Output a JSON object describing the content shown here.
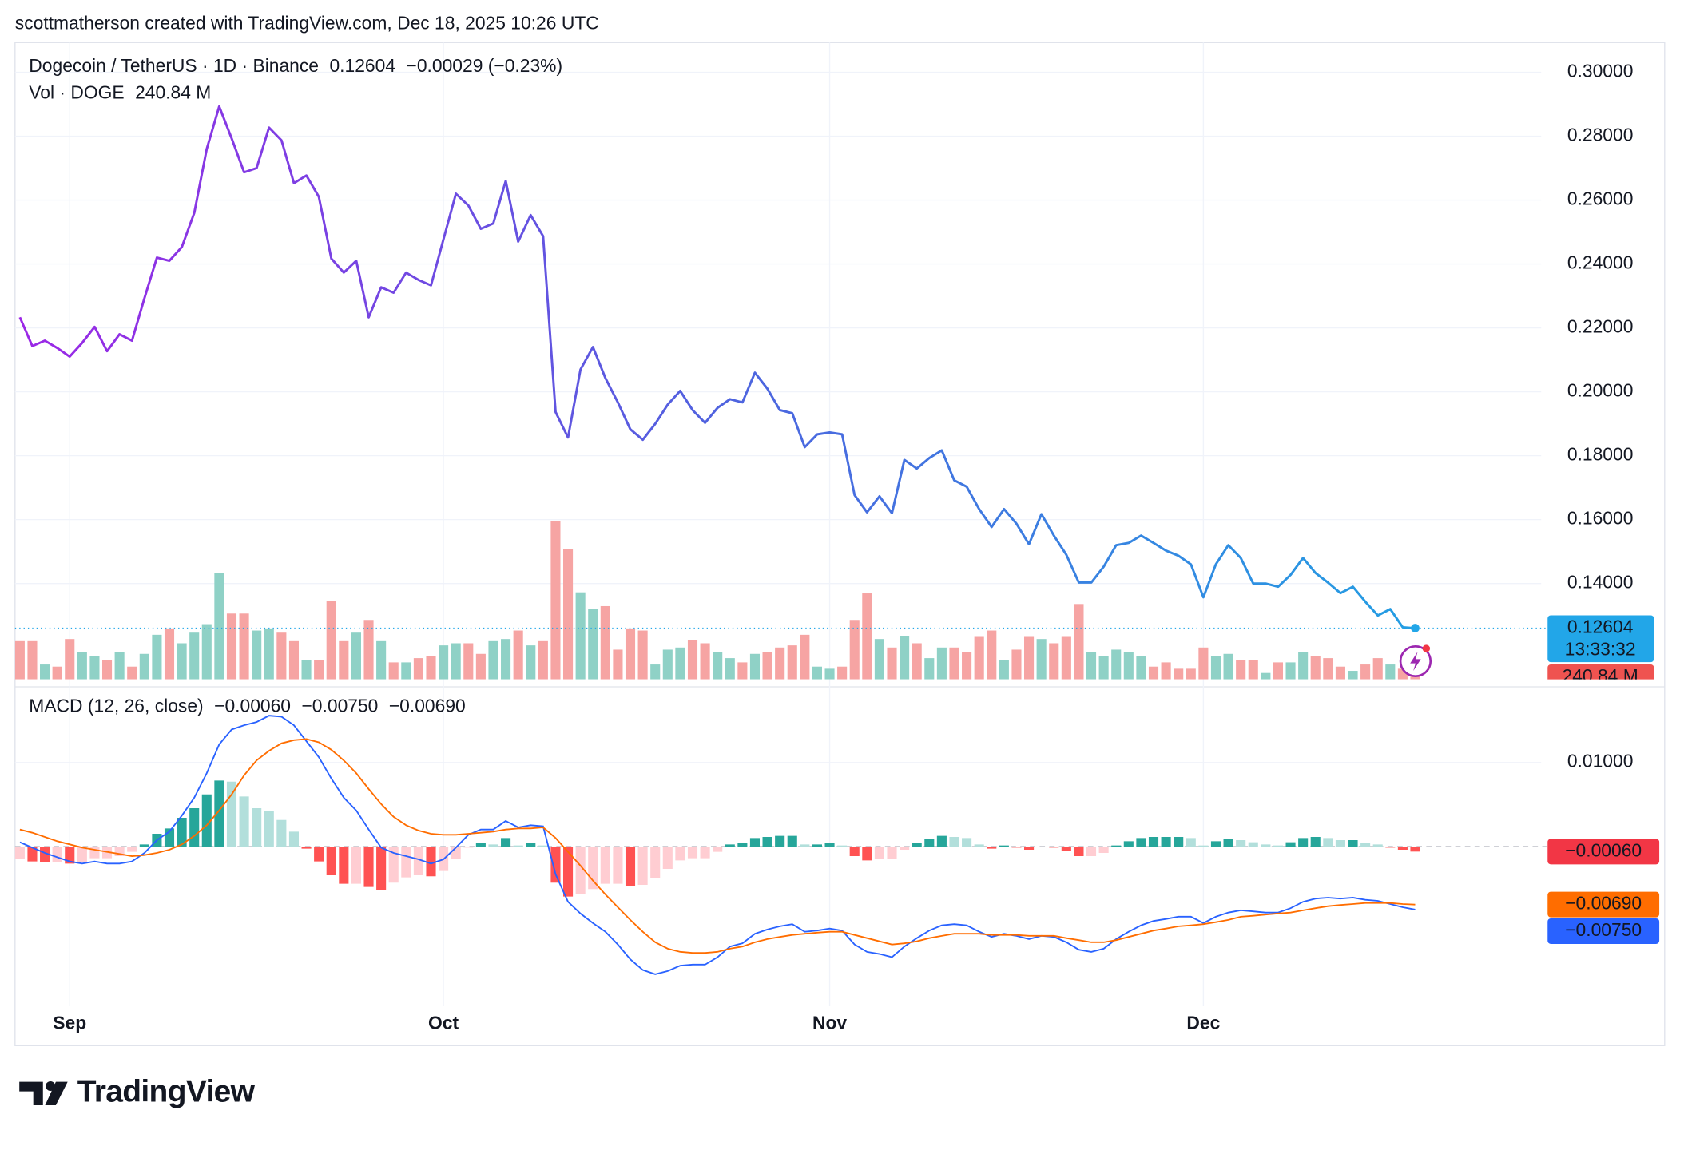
{
  "header": "scottmatherson created with TradingView.com, Dec 18, 2025 10:26 UTC",
  "brand": "TradingView",
  "chart_data": [
    {
      "type": "line",
      "title": "Dogecoin / TetherUS · 1D · Binance",
      "change": "−0.00029 (−0.23%)",
      "countdown": "13:33:32",
      "categories": [
        null,
        null,
        null,
        null,
        "Sep",
        null,
        null,
        null,
        null,
        null,
        null,
        null,
        null,
        null,
        null,
        null,
        null,
        null,
        null,
        null,
        null,
        null,
        null,
        null,
        null,
        null,
        null,
        null,
        null,
        null,
        null,
        null,
        null,
        null,
        "Oct",
        null,
        null,
        null,
        null,
        null,
        null,
        null,
        null,
        null,
        null,
        null,
        null,
        null,
        null,
        null,
        null,
        null,
        null,
        null,
        null,
        null,
        null,
        null,
        null,
        null,
        null,
        null,
        null,
        null,
        null,
        "Nov",
        null,
        null,
        null,
        null,
        null,
        null,
        null,
        null,
        null,
        null,
        null,
        null,
        null,
        null,
        null,
        null,
        null,
        null,
        null,
        null,
        null,
        null,
        null,
        null,
        null,
        null,
        null,
        null,
        null,
        "Dec",
        null,
        null,
        null,
        null,
        null,
        null,
        null,
        null,
        null,
        null,
        null,
        null,
        null,
        null,
        null,
        null,
        null
      ],
      "ylim": [
        0.11,
        0.3093
      ],
      "yticks": [
        {
          "value": 0.14,
          "label": "0.14000"
        },
        {
          "value": 0.16,
          "label": "0.16000"
        },
        {
          "value": 0.18,
          "label": "0.18000"
        },
        {
          "value": 0.2,
          "label": "0.20000"
        },
        {
          "value": 0.22,
          "label": "0.22000"
        },
        {
          "value": 0.24,
          "label": "0.24000"
        },
        {
          "value": 0.26,
          "label": "0.26000"
        },
        {
          "value": 0.28,
          "label": "0.28000"
        },
        {
          "value": 0.3,
          "label": "0.30000"
        }
      ],
      "grid": true,
      "series": [
        {
          "color": [
            "#9c27e6",
            "#4f63df",
            "#239fe3"
          ],
          "values": [
            0.2233,
            0.2143,
            0.216,
            0.2137,
            0.211,
            0.2153,
            0.2203,
            0.2127,
            0.218,
            0.216,
            0.2293,
            0.242,
            0.241,
            0.2453,
            0.256,
            0.276,
            0.2893,
            0.2793,
            0.2687,
            0.27,
            0.2827,
            0.2787,
            0.2653,
            0.2677,
            0.261,
            0.2417,
            0.2373,
            0.241,
            0.2233,
            0.2327,
            0.231,
            0.2373,
            0.235,
            0.2333,
            0.2477,
            0.262,
            0.2583,
            0.251,
            0.2527,
            0.266,
            0.247,
            0.2553,
            0.2487,
            0.1937,
            0.1857,
            0.207,
            0.214,
            0.2043,
            0.1967,
            0.1883,
            0.185,
            0.19,
            0.196,
            0.2003,
            0.1943,
            0.1903,
            0.195,
            0.1977,
            0.1967,
            0.206,
            0.201,
            0.1943,
            0.1933,
            0.1827,
            0.1867,
            0.1873,
            0.1867,
            0.1677,
            0.1623,
            0.1673,
            0.162,
            0.1787,
            0.176,
            0.1793,
            0.1817,
            0.1723,
            0.1703,
            0.1633,
            0.1577,
            0.1633,
            0.1587,
            0.1523,
            0.1617,
            0.155,
            0.149,
            0.1403,
            0.1403,
            0.1453,
            0.152,
            0.1527,
            0.155,
            0.1527,
            0.1503,
            0.1487,
            0.146,
            0.1357,
            0.146,
            0.152,
            0.148,
            0.14,
            0.14,
            0.139,
            0.1427,
            0.148,
            0.1433,
            0.1403,
            0.137,
            0.139,
            0.1343,
            0.13,
            0.132,
            0.1263,
            0.12604
          ]
        }
      ],
      "last_color": "#22a6e8"
    },
    {
      "type": "bar",
      "name": "Vol · DOGE",
      "last_label": "240.84 M",
      "ylim": [
        0,
        12000
      ],
      "colors": {
        "up": "#8fd1c6",
        "down": "#f6a4a3",
        "last": "#ef5350"
      },
      "values": [
        720,
        720,
        280,
        240,
        760,
        520,
        440,
        360,
        520,
        240,
        480,
        840,
        960,
        680,
        880,
        1040,
        2000,
        1240,
        1240,
        920,
        960,
        880,
        720,
        360,
        360,
        1480,
        720,
        880,
        1120,
        720,
        320,
        320,
        400,
        440,
        640,
        680,
        680,
        480,
        720,
        760,
        920,
        640,
        720,
        2980,
        2460,
        1640,
        1320,
        1380,
        560,
        960,
        920,
        280,
        560,
        600,
        740,
        680,
        520,
        400,
        320,
        480,
        520,
        600,
        640,
        840,
        240,
        200,
        240,
        1120,
        1620,
        760,
        600,
        820,
        680,
        400,
        600,
        600,
        520,
        800,
        920,
        360,
        560,
        800,
        760,
        680,
        800,
        1420,
        520,
        440,
        560,
        520,
        440,
        240,
        320,
        200,
        200,
        600,
        440,
        480,
        360,
        360,
        120,
        320,
        320,
        520,
        440,
        400,
        240,
        160,
        280,
        400,
        280,
        200,
        240.84
      ]
    },
    {
      "type": "macd",
      "title": "MACD (12, 26, close)",
      "ylim": [
        -0.019,
        0.019
      ],
      "yticks": [
        {
          "value": 0.01,
          "label": "0.01000"
        }
      ],
      "series": [
        {
          "kind": "histogram",
          "last_label": "−0.00060",
          "colors": {
            "up_rising": "#26a69a",
            "up_falling": "#b2dfdb",
            "down_falling": "#ff5252",
            "down_rising": "#ffcdd2",
            "last": "#f23645"
          },
          "values": [
            -0.00152,
            -0.00177,
            -0.0019,
            -0.0019,
            -0.00203,
            -0.0019,
            -0.00139,
            -0.00139,
            -0.00114,
            -0.00063,
            0.00025,
            0.00152,
            0.00215,
            0.00342,
            0.00456,
            0.0062,
            0.00785,
            0.00772,
            0.00595,
            0.00456,
            0.00418,
            0.00316,
            0.00177,
            -0.00025,
            -0.00177,
            -0.00342,
            -0.00443,
            -0.00443,
            -0.00481,
            -0.00519,
            -0.0043,
            -0.00367,
            -0.00342,
            -0.00354,
            -0.00291,
            -0.00152,
            -0.00013,
            0.00038,
            0.00025,
            0.00101,
            0.00013,
            0.00038,
            0.00013,
            -0.0043,
            -0.00595,
            -0.0057,
            -0.00506,
            -0.00443,
            -0.00443,
            -0.00468,
            -0.00456,
            -0.0038,
            -0.00266,
            -0.00165,
            -0.00139,
            -0.00139,
            -0.00063,
            0.00025,
            0.00038,
            0.00101,
            0.00114,
            0.00127,
            0.00127,
            0.00025,
            0.00025,
            0.00038,
            0.00013,
            -0.00114,
            -0.00165,
            -0.00152,
            -0.00152,
            -0.00038,
            0.00038,
            0.00089,
            0.00127,
            0.00114,
            0.00101,
            0.00025,
            -0.00025,
            0.00013,
            -0.00013,
            -0.00038,
            0,
            -0.00013,
            -0.00051,
            -0.00114,
            -0.00114,
            -0.00076,
            0.00013,
            0.00063,
            0.00101,
            0.00114,
            0.00114,
            0.00114,
            0.00101,
            0.00013,
            0.00063,
            0.00089,
            0.00076,
            0.00051,
            0.00025,
            0.00013,
            0.00051,
            0.00101,
            0.00114,
            0.00101,
            0.00076,
            0.00076,
            0.00038,
            0.00025,
            -0.00013,
            -0.00038,
            -0.0006
          ]
        },
        {
          "kind": "line",
          "color": "#2962ff",
          "last_label": "−0.00750",
          "values": [
            0.00051,
            -0.00013,
            -0.00076,
            -0.00127,
            -0.00177,
            -0.00203,
            -0.00177,
            -0.00203,
            -0.00203,
            -0.00177,
            -0.00076,
            0.00076,
            0.00177,
            0.00367,
            0.00582,
            0.00873,
            0.01215,
            0.01392,
            0.01443,
            0.01481,
            0.01557,
            0.01544,
            0.01443,
            0.01253,
            0.01063,
            0.0081,
            0.00582,
            0.0043,
            0.00203,
            -0.00013,
            -0.00076,
            -0.00114,
            -0.00152,
            -0.00203,
            -0.00152,
            -0.00013,
            0.00139,
            0.00203,
            0.00203,
            0.00304,
            0.00228,
            0.00253,
            0.00241,
            -0.00329,
            -0.00658,
            -0.00797,
            -0.00911,
            -0.01013,
            -0.01165,
            -0.01342,
            -0.01468,
            -0.01519,
            -0.01481,
            -0.01418,
            -0.01405,
            -0.01405,
            -0.01316,
            -0.0119,
            -0.01152,
            -0.01038,
            -0.00987,
            -0.00949,
            -0.00924,
            -0.01013,
            -0.01,
            -0.00975,
            -0.01,
            -0.01165,
            -0.01253,
            -0.01278,
            -0.01316,
            -0.0119,
            -0.01089,
            -0.01,
            -0.00937,
            -0.00924,
            -0.00937,
            -0.01013,
            -0.01076,
            -0.01038,
            -0.01063,
            -0.01101,
            -0.01063,
            -0.01076,
            -0.01139,
            -0.01228,
            -0.01253,
            -0.01215,
            -0.01101,
            -0.01013,
            -0.00937,
            -0.00886,
            -0.00861,
            -0.00835,
            -0.00835,
            -0.00911,
            -0.00835,
            -0.00785,
            -0.00759,
            -0.00772,
            -0.00785,
            -0.00785,
            -0.00734,
            -0.00658,
            -0.0062,
            -0.00608,
            -0.0062,
            -0.00608,
            -0.00633,
            -0.00646,
            -0.00684,
            -0.00722,
            -0.0075
          ]
        },
        {
          "kind": "line",
          "color": "#ff6d00",
          "last_label": "−0.00690",
          "values": [
            0.00203,
            0.00165,
            0.00114,
            0.00063,
            0.00025,
            -0.00013,
            -0.00038,
            -0.00063,
            -0.00089,
            -0.00114,
            -0.00101,
            -0.00076,
            -0.00038,
            0.00025,
            0.00127,
            0.00253,
            0.0043,
            0.0062,
            0.00848,
            0.01025,
            0.01139,
            0.01228,
            0.01266,
            0.01278,
            0.0124,
            0.01152,
            0.01025,
            0.00873,
            0.00684,
            0.00506,
            0.00354,
            0.00253,
            0.0019,
            0.00152,
            0.00139,
            0.00139,
            0.00152,
            0.00165,
            0.00177,
            0.00203,
            0.00215,
            0.00215,
            0.00228,
            0.00101,
            -0.00063,
            -0.00228,
            -0.00405,
            -0.0057,
            -0.00722,
            -0.00873,
            -0.01013,
            -0.01139,
            -0.01215,
            -0.01253,
            -0.01266,
            -0.01266,
            -0.01253,
            -0.01215,
            -0.0119,
            -0.01139,
            -0.01101,
            -0.01076,
            -0.01051,
            -0.01038,
            -0.01025,
            -0.01013,
            -0.01013,
            -0.01051,
            -0.01089,
            -0.01127,
            -0.01165,
            -0.01152,
            -0.01127,
            -0.01089,
            -0.01063,
            -0.01038,
            -0.01038,
            -0.01038,
            -0.01051,
            -0.01051,
            -0.01051,
            -0.01063,
            -0.01063,
            -0.01063,
            -0.01089,
            -0.01114,
            -0.01139,
            -0.01139,
            -0.01114,
            -0.01076,
            -0.01038,
            -0.01,
            -0.00975,
            -0.00949,
            -0.00937,
            -0.00924,
            -0.00899,
            -0.00873,
            -0.00835,
            -0.00823,
            -0.0081,
            -0.00797,
            -0.00785,
            -0.00759,
            -0.00734,
            -0.00709,
            -0.00696,
            -0.00684,
            -0.00671,
            -0.00671,
            -0.00671,
            -0.00684,
            -0.0069
          ]
        }
      ]
    }
  ]
}
